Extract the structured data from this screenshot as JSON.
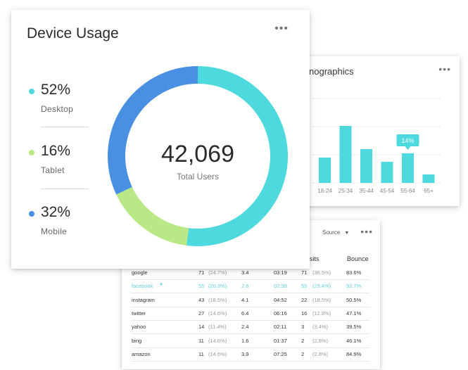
{
  "demographics": {
    "title": "nographics",
    "colors": {
      "bar": "#4dd9dd",
      "tooltip": "#4dd9dd"
    },
    "chart_data": {
      "type": "bar",
      "categories": [
        "18-24",
        "25-34",
        "35-44",
        "45-54",
        "55-64",
        "65+"
      ],
      "values": [
        12,
        27,
        16,
        10,
        14,
        4
      ],
      "tooltip": {
        "category": "55-64",
        "text": "14%"
      }
    }
  },
  "source": {
    "select_label": "Source",
    "headers": [
      "w Visits",
      "Bounce"
    ],
    "rows": [
      {
        "name": "google",
        "sessions": "71",
        "sessions_pct": "(24.7%)",
        "ppv": "3.4",
        "duration": "03:19",
        "visits": "71",
        "visits_pct": "(36.5%)",
        "bounce": "83.6%"
      },
      {
        "name": "facebook",
        "sessions": "55",
        "sessions_pct": "(20.3%)",
        "ppv": "2.6",
        "duration": "02:39",
        "visits": "55",
        "visits_pct": "(29.4%)",
        "bounce": "93.7%"
      },
      {
        "name": "instagram",
        "sessions": "43",
        "sessions_pct": "(18.5%)",
        "ppv": "4.1",
        "duration": "04:52",
        "visits": "22",
        "visits_pct": "(18.5%)",
        "bounce": "50.5%"
      },
      {
        "name": "twitter",
        "sessions": "27",
        "sessions_pct": "(14.6%)",
        "ppv": "6.4",
        "duration": "06:16",
        "visits": "16",
        "visits_pct": "(12.8%)",
        "bounce": "47.1%"
      },
      {
        "name": "yahoo",
        "sessions": "14",
        "sessions_pct": "(11.4%)",
        "ppv": "2.4",
        "duration": "02:11",
        "visits": "3",
        "visits_pct": "(3.4%)",
        "bounce": "39.5%"
      },
      {
        "name": "bing",
        "sessions": "11",
        "sessions_pct": "(14.6%)",
        "ppv": "1.6",
        "duration": "01:37",
        "visits": "2",
        "visits_pct": "(2.8%)",
        "bounce": "46.1%"
      },
      {
        "name": "amazon",
        "sessions": "11",
        "sessions_pct": "(14.6%)",
        "ppv": "3.9",
        "duration": "07:25",
        "visits": "2",
        "visits_pct": "(2.8%)",
        "bounce": "84.9%"
      }
    ],
    "highlight_row": "facebook",
    "colors": {
      "highlight": "#64cfe0"
    }
  },
  "device": {
    "title": "Device Usage",
    "total_value": "42,069",
    "total_label": "Total Users",
    "chart_data": {
      "type": "pie",
      "slices": [
        {
          "label": "Desktop",
          "value": 52,
          "display": "52%",
          "color": "#4dd9dd"
        },
        {
          "label": "Tablet",
          "value": 16,
          "display": "16%",
          "color": "#b8e986"
        },
        {
          "label": "Mobile",
          "value": 32,
          "display": "32%",
          "color": "#4a90e2"
        }
      ]
    }
  },
  "icons": {
    "more": "more-horizontal-icon",
    "caret": "caret-down-icon"
  }
}
